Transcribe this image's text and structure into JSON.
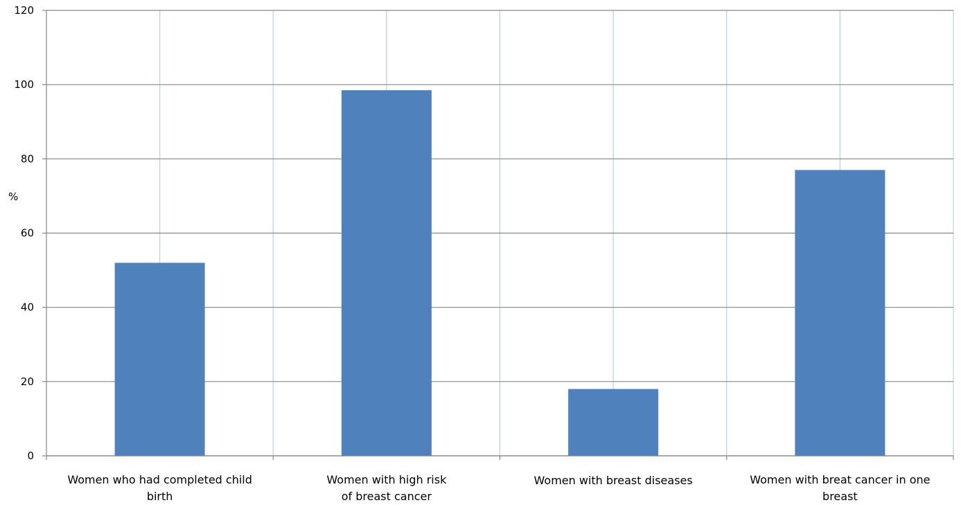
{
  "chart_data": {
    "type": "bar",
    "categories": [
      [
        "Women who had completed child",
        "birth"
      ],
      [
        "Women with high risk",
        "of breast cancer"
      ],
      [
        "Women with breast diseases"
      ],
      [
        "Women with breat cancer in one",
        "breast"
      ]
    ],
    "values": [
      52,
      98.5,
      18,
      77
    ],
    "ylabel": "%",
    "ylim": [
      0,
      120
    ],
    "yticks": [
      0,
      20,
      40,
      60,
      80,
      100,
      120
    ],
    "grid": true,
    "legend": "none",
    "colors": {
      "bar": "#4F81BD",
      "h_grid": "#868686",
      "v_grid": "#B9CDE5",
      "axis": "#868686"
    }
  }
}
